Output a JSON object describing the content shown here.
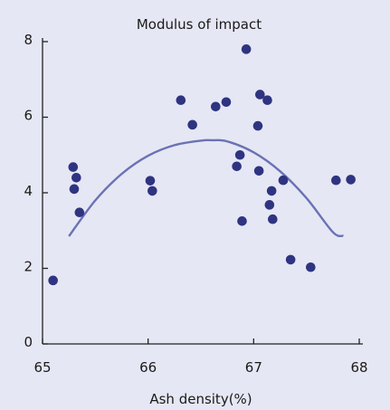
{
  "chart_data": {
    "type": "scatter",
    "title": "Modulus of impact",
    "xlabel": "Ash density(%)",
    "ylabel": "",
    "xlim": [
      65,
      68
    ],
    "ylim": [
      0,
      8
    ],
    "xticks": [
      65,
      66,
      67,
      68
    ],
    "yticks": [
      0,
      2,
      4,
      6,
      8
    ],
    "xtick_labels": [
      "65",
      "66",
      "67",
      "68"
    ],
    "ytick_labels": [
      "0",
      "2",
      "4",
      "6",
      "8"
    ],
    "grid": false,
    "legend": "none",
    "colors": {
      "background": "#e6e7f4",
      "points": "#2e3480",
      "curve": "#6a72b4",
      "axis": "#222222"
    },
    "series": [
      {
        "type": "scatter",
        "x": [
          65.1,
          65.29,
          65.3,
          65.32,
          65.35,
          66.02,
          66.04,
          66.31,
          66.42,
          66.64,
          66.74,
          66.84,
          66.87,
          66.89,
          66.93,
          67.04,
          67.05,
          67.06,
          67.13,
          67.15,
          67.17,
          67.18,
          67.28,
          67.35,
          67.54,
          67.78,
          67.92
        ],
        "y": [
          1.68,
          4.68,
          4.1,
          4.4,
          3.48,
          4.32,
          4.05,
          6.45,
          5.8,
          6.28,
          6.4,
          4.7,
          5.0,
          3.25,
          7.8,
          5.77,
          4.58,
          6.6,
          6.45,
          3.68,
          4.05,
          3.3,
          4.33,
          2.23,
          2.03,
          4.33,
          4.35
        ]
      },
      {
        "type": "line",
        "x": [
          65.25,
          65.5,
          65.75,
          66.0,
          66.25,
          66.5,
          66.6,
          66.75,
          67.0,
          67.25,
          67.5,
          67.75,
          67.85
        ],
        "y": [
          2.85,
          3.8,
          4.5,
          4.98,
          5.26,
          5.38,
          5.39,
          5.36,
          5.07,
          4.57,
          3.86,
          2.96,
          2.86
        ]
      }
    ]
  }
}
